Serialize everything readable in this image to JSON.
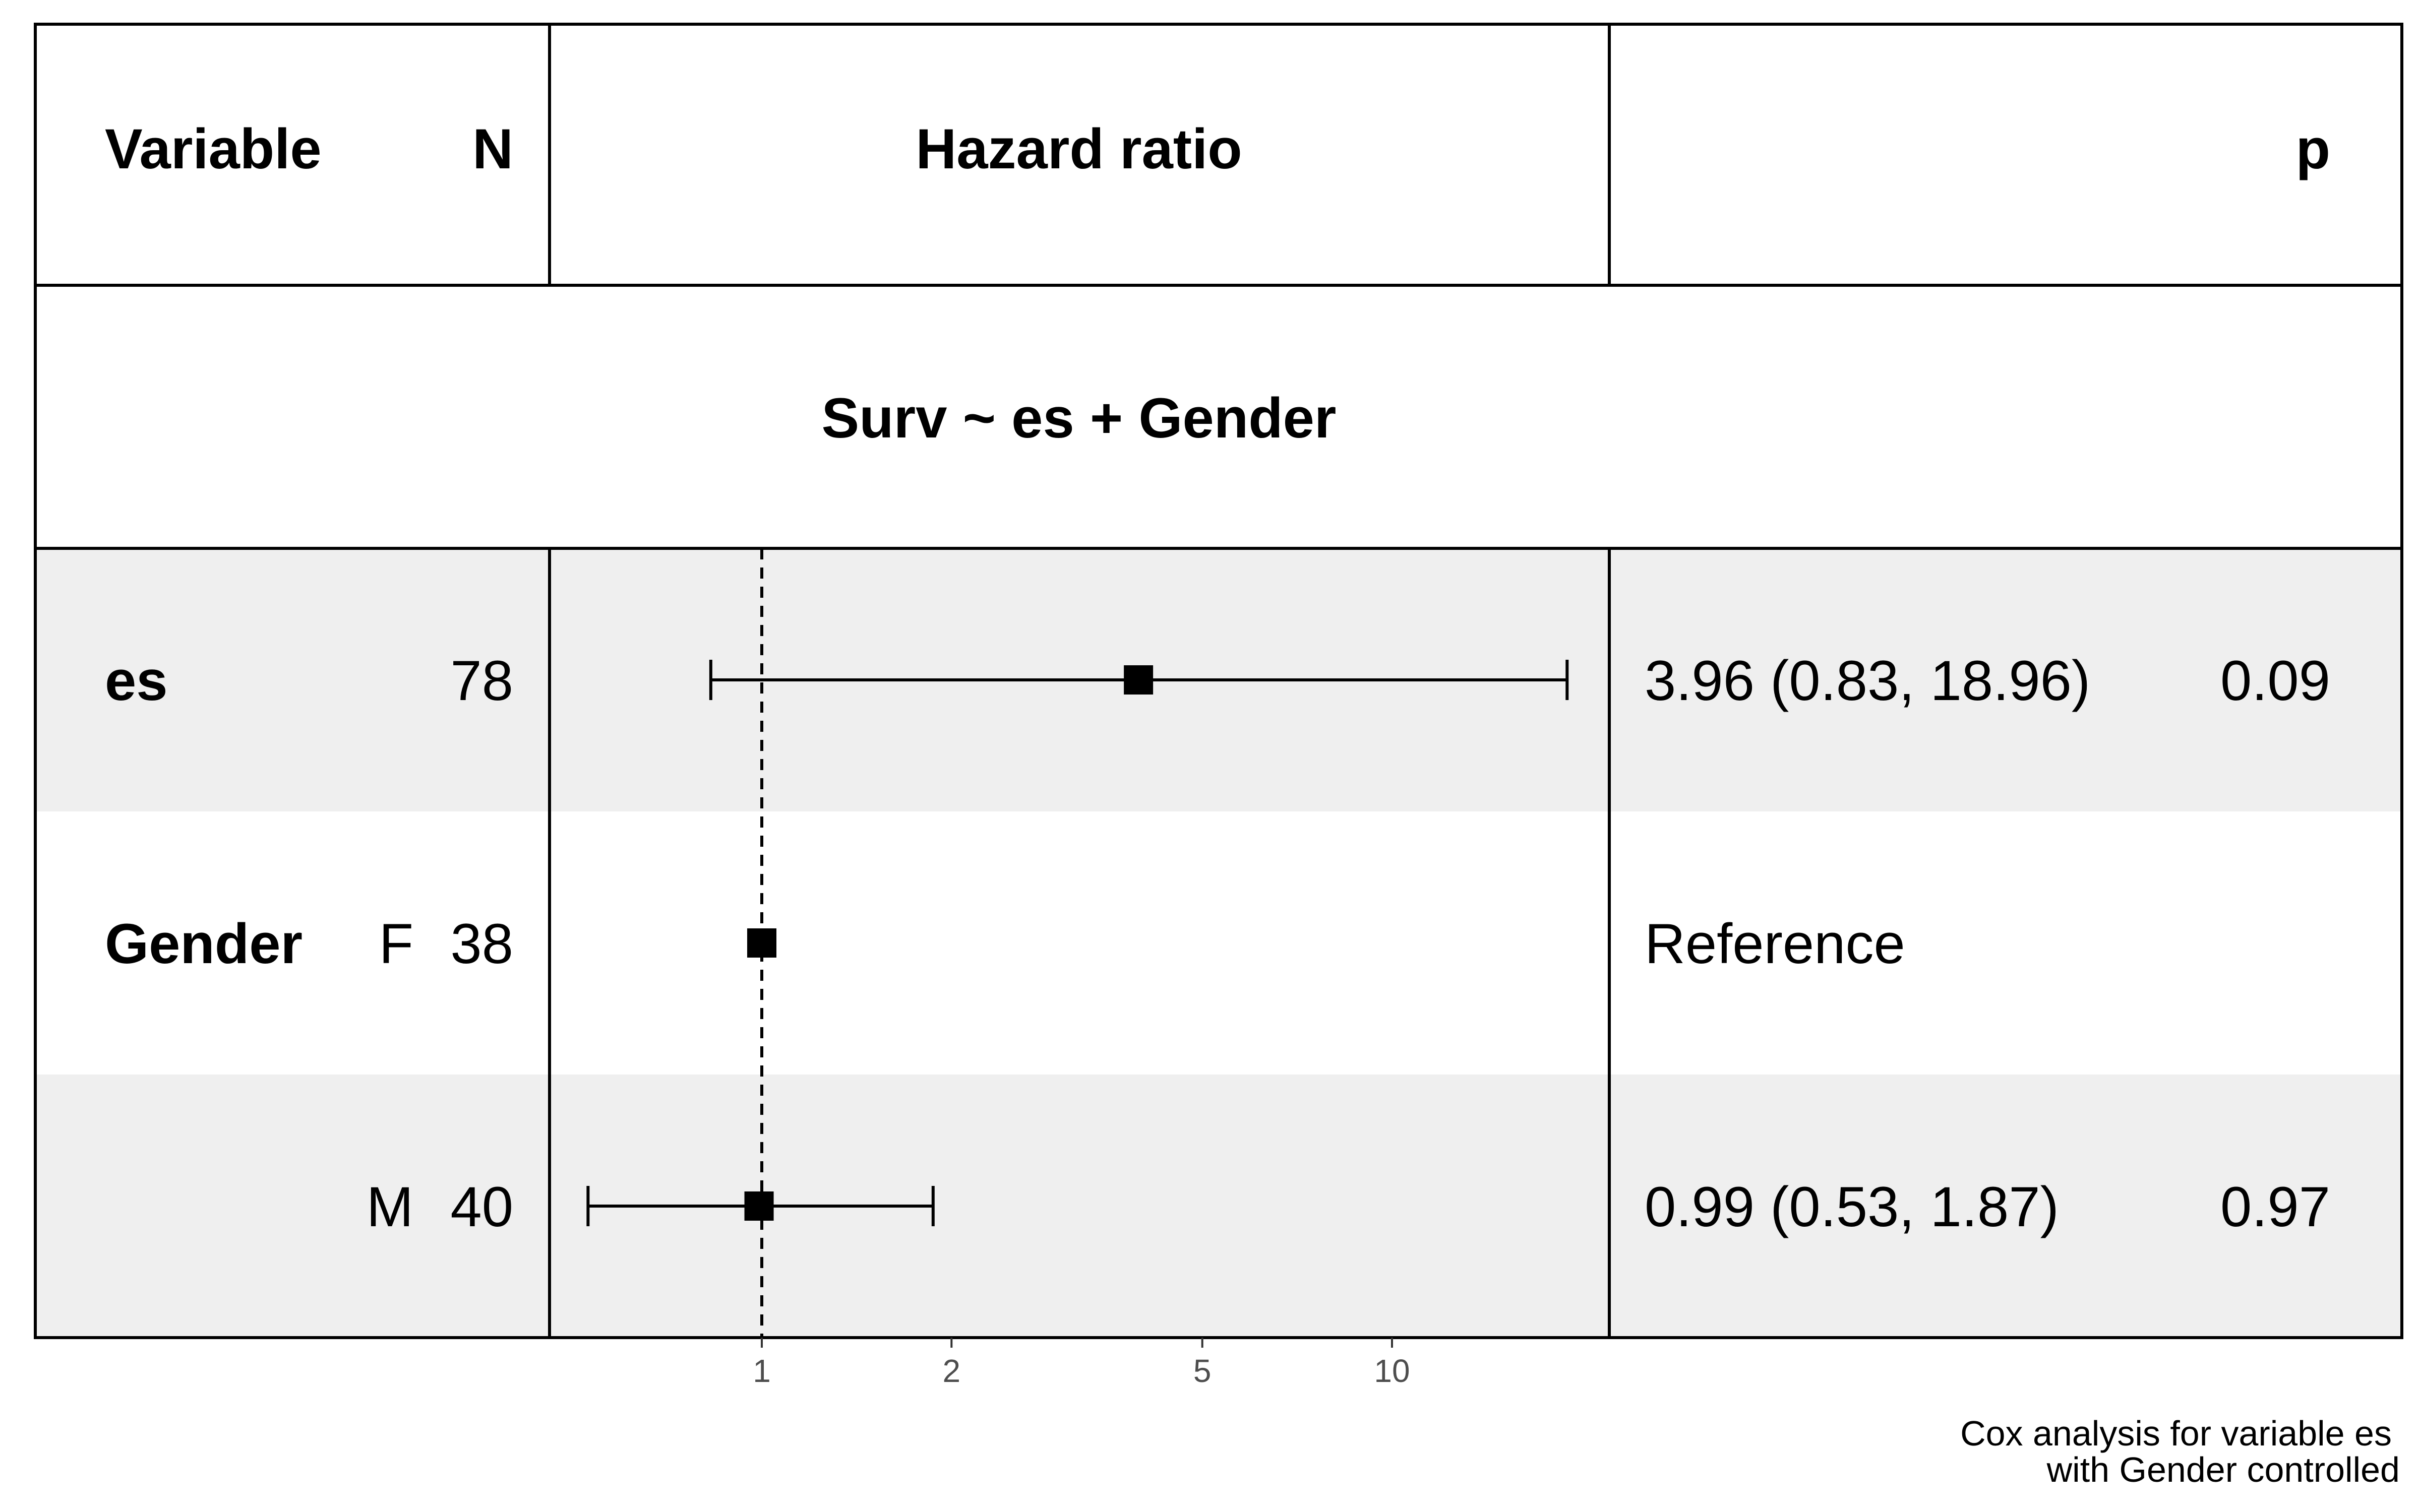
{
  "header": {
    "variable": "Variable",
    "n": "N",
    "hazard_ratio": "Hazard ratio",
    "p": "p"
  },
  "formula": "Surv ~ es + Gender",
  "caption": {
    "line1": "Cox analysis for variable es",
    "line2": "with Gender controlled"
  },
  "colors": {
    "stripe": "#efefef",
    "line": "#000000",
    "tick_text": "#4d4d4d"
  },
  "chart_data": {
    "type": "forest",
    "x_scale": "log",
    "reference_line": 1,
    "x_ticks": [
      1,
      2,
      5,
      10
    ],
    "x_tick_labels": [
      "1",
      "2",
      "5",
      "10"
    ],
    "rows": [
      {
        "variable": "es",
        "level": "",
        "n": "78",
        "hr": 3.96,
        "lower": 0.83,
        "upper": 18.96,
        "estimate_text": "3.96 (0.83, 18.96)",
        "p": "0.09"
      },
      {
        "variable": "Gender",
        "level": "F",
        "n": "38",
        "hr": 1,
        "lower": null,
        "upper": null,
        "estimate_text": "Reference",
        "p": ""
      },
      {
        "variable": "",
        "level": "M",
        "n": "40",
        "hr": 0.99,
        "lower": 0.53,
        "upper": 1.87,
        "estimate_text": "0.99 (0.53, 1.87)",
        "p": "0.97"
      }
    ]
  }
}
